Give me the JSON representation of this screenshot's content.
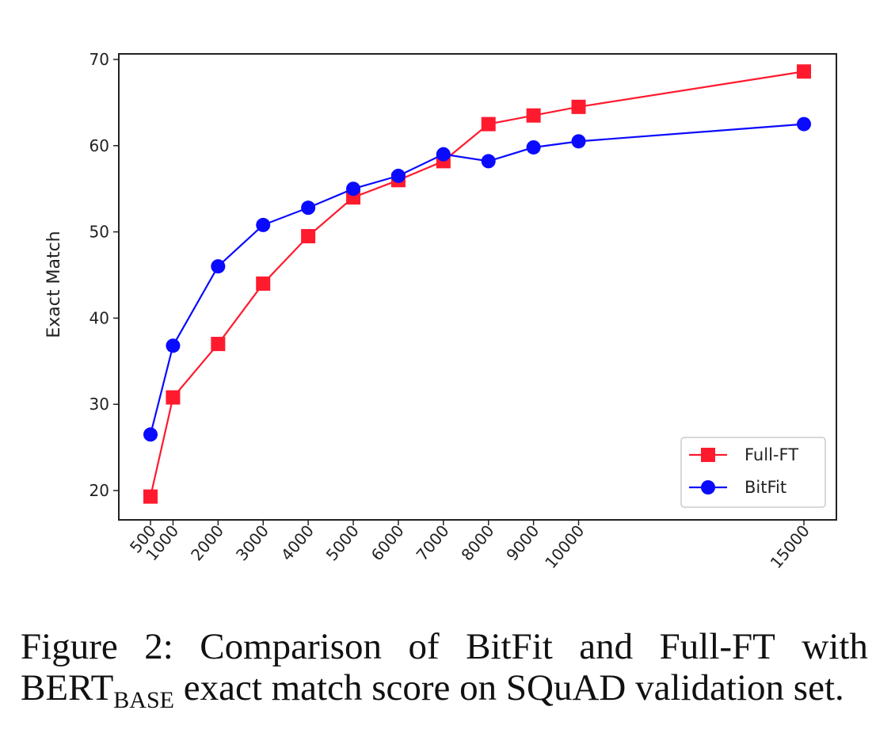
{
  "chart_data": {
    "type": "line",
    "title": "",
    "xlabel": "",
    "ylabel": "Exact Match",
    "x": [
      500,
      1000,
      2000,
      3000,
      4000,
      5000,
      6000,
      7000,
      8000,
      9000,
      10000,
      15000
    ],
    "x_tick_labels": [
      "500",
      "1000",
      "2000",
      "3000",
      "4000",
      "5000",
      "6000",
      "7000",
      "8000",
      "9000",
      "10000",
      "15000"
    ],
    "xlim": [
      500,
      15000
    ],
    "ylim": [
      15,
      70
    ],
    "y_ticks": [
      20,
      30,
      40,
      50,
      60,
      70
    ],
    "grid": false,
    "legend_position": "lower-right",
    "series": [
      {
        "name": "Full-FT",
        "color": "#ff1a2e",
        "marker": "square",
        "values": [
          19.3,
          30.8,
          37.0,
          44.0,
          49.5,
          54.0,
          56.0,
          58.2,
          62.5,
          63.5,
          64.5,
          68.6
        ]
      },
      {
        "name": "BitFit",
        "color": "#0a0aff",
        "marker": "circle",
        "values": [
          26.5,
          36.8,
          46.0,
          50.8,
          52.8,
          55.0,
          56.5,
          59.0,
          58.2,
          59.8,
          60.5,
          62.5
        ]
      }
    ]
  },
  "caption": {
    "line1_words": [
      "Figure",
      "2:",
      "Comparison",
      "of",
      "BitFit",
      "and",
      "Full-FT",
      "with"
    ],
    "model_base": "BERT",
    "model_sub": "BASE",
    "line2_rest": " exact match score on SQuAD validation set."
  }
}
